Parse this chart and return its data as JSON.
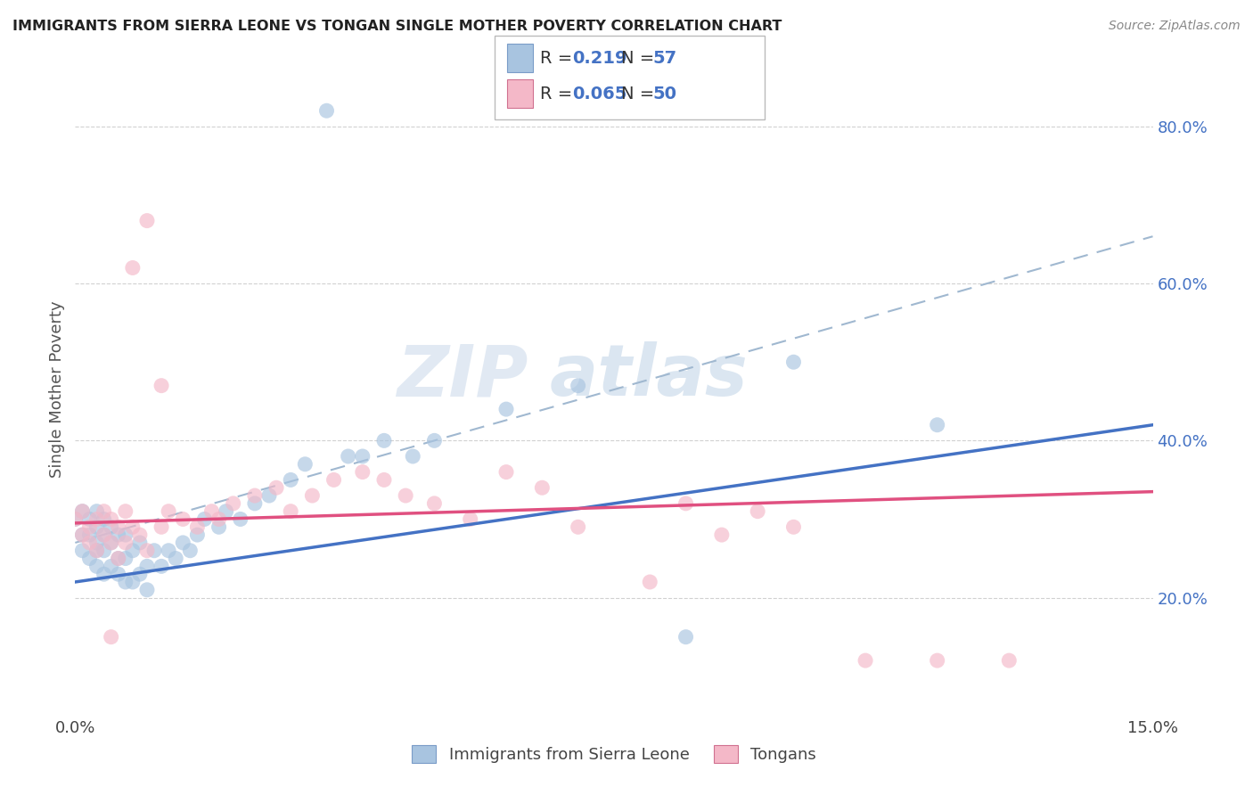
{
  "title": "IMMIGRANTS FROM SIERRA LEONE VS TONGAN SINGLE MOTHER POVERTY CORRELATION CHART",
  "source": "Source: ZipAtlas.com",
  "ylabel": "Single Mother Poverty",
  "y_ticks": [
    0.2,
    0.4,
    0.6,
    0.8
  ],
  "y_tick_labels": [
    "20.0%",
    "40.0%",
    "60.0%",
    "80.0%"
  ],
  "xmin": 0.0,
  "xmax": 0.15,
  "ymin": 0.05,
  "ymax": 0.88,
  "legend_color1": "#a8c4e0",
  "legend_color2": "#f4b8c8",
  "scatter_color1": "#a8c4e0",
  "scatter_color2": "#f4b8c8",
  "line_color1": "#4472c4",
  "line_color2": "#e05080",
  "trendline_color": "#a0b8d0",
  "watermark_zip": "ZIP",
  "watermark_atlas": "atlas",
  "background_color": "#ffffff",
  "grid_color": "#cccccc",
  "sl_line_y0": 0.22,
  "sl_line_y1": 0.42,
  "to_line_y0": 0.295,
  "to_line_y1": 0.335,
  "dash_line_y0": 0.27,
  "dash_line_y1": 0.66,
  "sierra_leone_x": [
    0.0,
    0.001,
    0.001,
    0.001,
    0.002,
    0.002,
    0.002,
    0.003,
    0.003,
    0.003,
    0.003,
    0.003,
    0.004,
    0.004,
    0.004,
    0.004,
    0.005,
    0.005,
    0.005,
    0.006,
    0.006,
    0.006,
    0.007,
    0.007,
    0.007,
    0.008,
    0.008,
    0.009,
    0.009,
    0.01,
    0.01,
    0.011,
    0.012,
    0.013,
    0.014,
    0.015,
    0.016,
    0.017,
    0.018,
    0.02,
    0.021,
    0.023,
    0.025,
    0.027,
    0.03,
    0.032,
    0.035,
    0.038,
    0.04,
    0.043,
    0.047,
    0.05,
    0.06,
    0.07,
    0.085,
    0.1,
    0.12
  ],
  "sierra_leone_y": [
    0.3,
    0.26,
    0.28,
    0.31,
    0.25,
    0.28,
    0.3,
    0.24,
    0.26,
    0.27,
    0.29,
    0.31,
    0.23,
    0.26,
    0.28,
    0.3,
    0.24,
    0.27,
    0.29,
    0.23,
    0.25,
    0.28,
    0.22,
    0.25,
    0.28,
    0.22,
    0.26,
    0.23,
    0.27,
    0.21,
    0.24,
    0.26,
    0.24,
    0.26,
    0.25,
    0.27,
    0.26,
    0.28,
    0.3,
    0.29,
    0.31,
    0.3,
    0.32,
    0.33,
    0.35,
    0.37,
    0.82,
    0.38,
    0.38,
    0.4,
    0.38,
    0.4,
    0.44,
    0.47,
    0.15,
    0.5,
    0.42
  ],
  "tongan_x": [
    0.0,
    0.001,
    0.001,
    0.002,
    0.002,
    0.003,
    0.003,
    0.004,
    0.004,
    0.005,
    0.005,
    0.006,
    0.006,
    0.007,
    0.007,
    0.008,
    0.009,
    0.01,
    0.01,
    0.012,
    0.013,
    0.015,
    0.017,
    0.019,
    0.02,
    0.022,
    0.025,
    0.028,
    0.03,
    0.033,
    0.036,
    0.04,
    0.043,
    0.046,
    0.05,
    0.055,
    0.06,
    0.065,
    0.07,
    0.08,
    0.085,
    0.09,
    0.095,
    0.1,
    0.11,
    0.12,
    0.13,
    0.005,
    0.008,
    0.012
  ],
  "tongan_y": [
    0.3,
    0.28,
    0.31,
    0.27,
    0.29,
    0.26,
    0.3,
    0.28,
    0.31,
    0.27,
    0.3,
    0.25,
    0.29,
    0.27,
    0.31,
    0.29,
    0.28,
    0.26,
    0.68,
    0.29,
    0.31,
    0.3,
    0.29,
    0.31,
    0.3,
    0.32,
    0.33,
    0.34,
    0.31,
    0.33,
    0.35,
    0.36,
    0.35,
    0.33,
    0.32,
    0.3,
    0.36,
    0.34,
    0.29,
    0.22,
    0.32,
    0.28,
    0.31,
    0.29,
    0.12,
    0.12,
    0.12,
    0.15,
    0.62,
    0.47
  ]
}
